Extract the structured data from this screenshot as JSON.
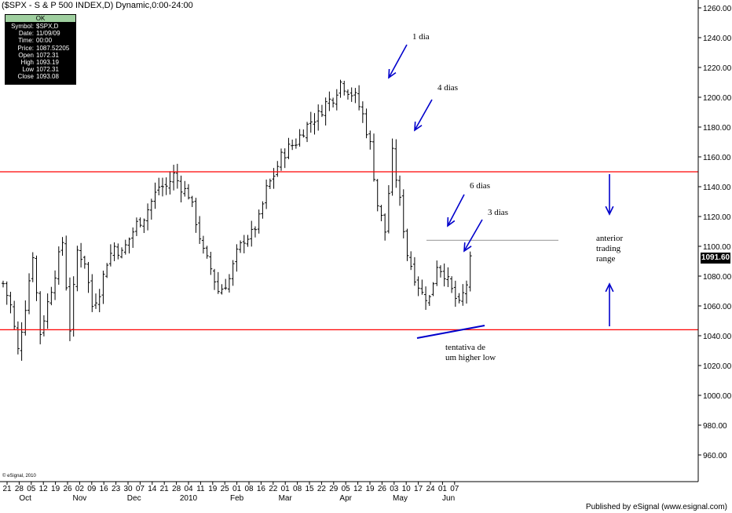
{
  "header": {
    "title": "($SPX - S & P 500 INDEX,D) Dynamic,0:00-24:00"
  },
  "info_box": {
    "status": "OK",
    "rows": [
      {
        "k": "Symbol:",
        "v": "$SPX,D"
      },
      {
        "k": "Date:",
        "v": "11/09/09"
      },
      {
        "k": "Time:",
        "v": "00:00"
      },
      {
        "k": "Price:",
        "v": "1087.52205"
      },
      {
        "k": "Open",
        "v": "1072.31"
      },
      {
        "k": "High",
        "v": "1093.19"
      },
      {
        "k": "Low",
        "v": "1072.31"
      },
      {
        "k": "Close",
        "v": "1093.08"
      }
    ]
  },
  "footer": {
    "published": "Published by eSignal (www.esignal.com)",
    "copyright": "© eSignal, 2010"
  },
  "last_price": "1091.60",
  "colors": {
    "bars": "#000000",
    "range_lines": "#ff0000",
    "annotations": "#0000cc",
    "resistance_line": "#aaaaaa"
  },
  "annotations": {
    "a1": "1 dia",
    "a4": "4 dias",
    "a6": "6 dias",
    "a3": "3 dias",
    "range_1": "anterior",
    "range_2": "trading",
    "range_3": "range",
    "hl_1": "tentativa de",
    "hl_2": "um higher low"
  },
  "chart_data": {
    "type": "ohlc",
    "title": "($SPX - S & P 500 INDEX,D) Dynamic,0:00-24:00",
    "xlabel": "",
    "ylabel": "",
    "ylim": [
      940,
      1260
    ],
    "y_ticks": [
      "1260.00",
      "1240.00",
      "1220.00",
      "1200.00",
      "1180.00",
      "1160.00",
      "1140.00",
      "1120.00",
      "1100.00",
      "1080.00",
      "1060.00",
      "1040.00",
      "1020.00",
      "1000.00",
      "980.00",
      "960.00"
    ],
    "y_tick_values": [
      1260,
      1240,
      1220,
      1200,
      1180,
      1160,
      1140,
      1120,
      1100,
      1080,
      1060,
      1040,
      1020,
      1000,
      980,
      960
    ],
    "x_day_ticks": [
      "21",
      "28",
      "05",
      "12",
      "19",
      "26",
      "02",
      "09",
      "16",
      "23",
      "30",
      "07",
      "14",
      "21",
      "28",
      "04",
      "11",
      "19",
      "25",
      "01",
      "08",
      "16",
      "22",
      "01",
      "08",
      "15",
      "22",
      "29",
      "05",
      "12",
      "19",
      "26",
      "03",
      "10",
      "17",
      "24",
      "01",
      "07"
    ],
    "x_month_labels": [
      {
        "label": "Oct",
        "day_index": 1.5
      },
      {
        "label": "Nov",
        "day_index": 6
      },
      {
        "label": "Dec",
        "day_index": 10.5
      },
      {
        "label": "2010",
        "day_index": 15
      },
      {
        "label": "Feb",
        "day_index": 19
      },
      {
        "label": "Mar",
        "day_index": 23
      },
      {
        "label": "Apr",
        "day_index": 28
      },
      {
        "label": "May",
        "day_index": 32.5
      },
      {
        "label": "Jun",
        "day_index": 36.5
      }
    ],
    "horizontal_lines": [
      {
        "name": "resistance",
        "value": 1150
      },
      {
        "name": "support",
        "value": 1044
      }
    ],
    "resistance_short": {
      "value": 1104
    },
    "anchors": [
      [
        0,
        1075
      ],
      [
        2,
        1060
      ],
      [
        4,
        1030
      ],
      [
        6,
        1060
      ],
      [
        8,
        1095
      ],
      [
        10,
        1042
      ],
      [
        13,
        1072
      ],
      [
        16,
        1103
      ],
      [
        18,
        1045
      ],
      [
        20,
        1097
      ],
      [
        22,
        1090
      ],
      [
        24,
        1060
      ],
      [
        26,
        1070
      ],
      [
        28,
        1090
      ],
      [
        30,
        1100
      ],
      [
        32,
        1095
      ],
      [
        34,
        1105
      ],
      [
        36,
        1115
      ],
      [
        38,
        1120
      ],
      [
        40,
        1130
      ],
      [
        42,
        1140
      ],
      [
        44,
        1140
      ],
      [
        46,
        1148
      ],
      [
        48,
        1140
      ],
      [
        50,
        1135
      ],
      [
        52,
        1117
      ],
      [
        54,
        1096
      ],
      [
        56,
        1085
      ],
      [
        58,
        1070
      ],
      [
        59,
        1072
      ],
      [
        61,
        1078
      ],
      [
        63,
        1095
      ],
      [
        65,
        1105
      ],
      [
        67,
        1108
      ],
      [
        69,
        1118
      ],
      [
        71,
        1138
      ],
      [
        73,
        1148
      ],
      [
        75,
        1160
      ],
      [
        77,
        1166
      ],
      [
        79,
        1170
      ],
      [
        81,
        1178
      ],
      [
        83,
        1184
      ],
      [
        85,
        1188
      ],
      [
        87,
        1196
      ],
      [
        89,
        1200
      ],
      [
        91,
        1210
      ],
      [
        93,
        1205
      ],
      [
        95,
        1200
      ],
      [
        97,
        1188
      ],
      [
        99,
        1168
      ],
      [
        101,
        1128
      ],
      [
        103,
        1110
      ],
      [
        105,
        1162
      ],
      [
        107,
        1130
      ],
      [
        109,
        1095
      ],
      [
        111,
        1080
      ],
      [
        113,
        1068
      ],
      [
        115,
        1065
      ],
      [
        117,
        1088
      ],
      [
        119,
        1082
      ],
      [
        121,
        1070
      ],
      [
        123,
        1060
      ],
      [
        125,
        1075
      ],
      [
        126,
        1090
      ]
    ]
  }
}
